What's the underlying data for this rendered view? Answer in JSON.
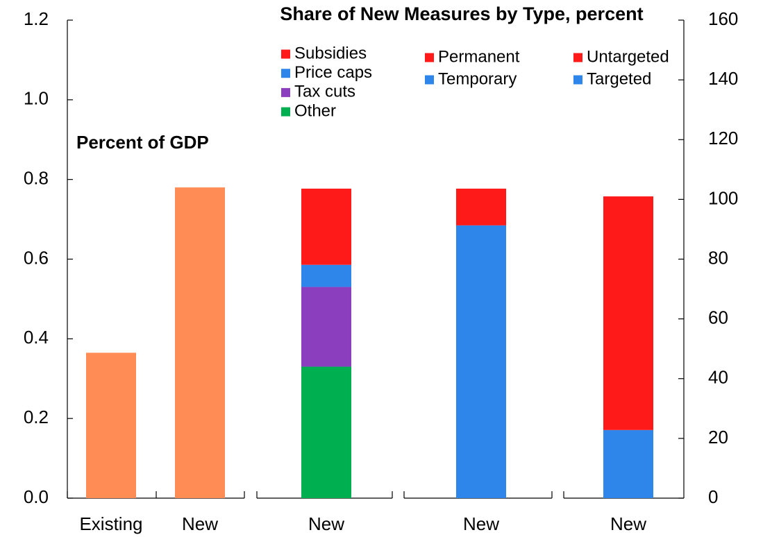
{
  "chart_data": {
    "type": "bar",
    "title": "Share of New Measures by Type, percent",
    "annotation": "Percent of GDP",
    "categories": [
      "Existing",
      "New",
      "New",
      "New",
      "New"
    ],
    "series": [
      {
        "color": "#FF8C55",
        "values": [
          0.365,
          0.78,
          null,
          null,
          null
        ]
      },
      {
        "name": "Subsidies",
        "color": "#FF1A1A",
        "axis": "y2",
        "values": [
          null,
          null,
          25.5,
          null,
          null
        ]
      },
      {
        "name": "Price caps",
        "color": "#2E86EA",
        "axis": "y2",
        "values": [
          null,
          null,
          7.4,
          null,
          null
        ]
      },
      {
        "name": "Tax cuts",
        "color": "#8B3FBF",
        "axis": "y2",
        "values": [
          null,
          null,
          26.7,
          null,
          null
        ]
      },
      {
        "name": "Other",
        "color": "#00B050",
        "axis": "y2",
        "values": [
          null,
          null,
          44,
          null,
          null
        ]
      },
      {
        "name": "Permanent",
        "color": "#FF1A1A",
        "axis": "y2",
        "values": [
          null,
          null,
          null,
          12.3,
          null
        ]
      },
      {
        "name": "Temporary",
        "color": "#2E86EA",
        "axis": "y2",
        "values": [
          null,
          null,
          null,
          91.3,
          null
        ]
      },
      {
        "name": "Untargeted",
        "color": "#FF1A1A",
        "axis": "y2",
        "values": [
          null,
          null,
          null,
          null,
          78.2
        ]
      },
      {
        "name": "Targeted",
        "color": "#2E86EA",
        "axis": "y2",
        "values": [
          null,
          null,
          null,
          null,
          22.8
        ]
      }
    ],
    "ylim": [
      0,
      1.2
    ],
    "yticks": [
      {
        "value": 0,
        "label": "0.0"
      },
      0.2,
      0.4,
      0.6,
      0.8,
      {
        "value": 1,
        "label": "1.0"
      },
      1.2
    ],
    "y2lim": [
      0,
      160
    ],
    "y2ticks": [
      0,
      20,
      40,
      60,
      80,
      100,
      120,
      140,
      160
    ],
    "stacked": true
  }
}
